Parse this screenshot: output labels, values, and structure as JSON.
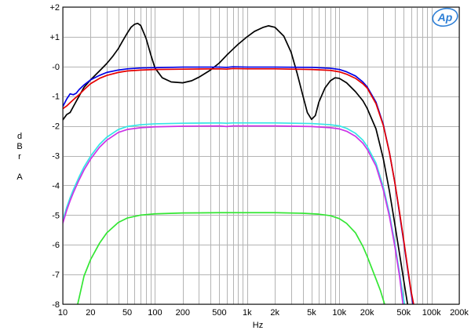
{
  "chart_data": {
    "type": "line",
    "xlabel": "Hz",
    "ylabel_lines": [
      "d",
      "B",
      "r",
      "",
      "A"
    ],
    "x_scale": "log",
    "xlim": [
      10,
      200000
    ],
    "ylim": [
      -8,
      2
    ],
    "grid": true,
    "x_major_ticks": [
      10,
      100,
      1000,
      10000,
      100000
    ],
    "x_tick_labels": [
      {
        "v": 10,
        "t": "10"
      },
      {
        "v": 20,
        "t": "20"
      },
      {
        "v": 50,
        "t": "50"
      },
      {
        "v": 100,
        "t": "100"
      },
      {
        "v": 200,
        "t": "200"
      },
      {
        "v": 500,
        "t": "500"
      },
      {
        "v": 1000,
        "t": "1k"
      },
      {
        "v": 2000,
        "t": "2k"
      },
      {
        "v": 5000,
        "t": "5k"
      },
      {
        "v": 10000,
        "t": "10k"
      },
      {
        "v": 20000,
        "t": "20k"
      },
      {
        "v": 50000,
        "t": "50k"
      },
      {
        "v": 100000,
        "t": "100k"
      },
      {
        "v": 200000,
        "t": "200k"
      }
    ],
    "y_tick_labels": [
      {
        "v": 2,
        "t": "+2"
      },
      {
        "v": 1,
        "t": "+1"
      },
      {
        "v": 0,
        "t": "-0"
      },
      {
        "v": -1,
        "t": "-1"
      },
      {
        "v": -2,
        "t": "-2"
      },
      {
        "v": -3,
        "t": "-3"
      },
      {
        "v": -4,
        "t": "-4"
      },
      {
        "v": -5,
        "t": "-5"
      },
      {
        "v": -6,
        "t": "-6"
      },
      {
        "v": -7,
        "t": "-7"
      },
      {
        "v": -8,
        "t": "-8"
      }
    ],
    "logo": "Ap",
    "series": [
      {
        "color": "#000000",
        "points": [
          [
            10,
            -1.8
          ],
          [
            11,
            -1.62
          ],
          [
            12,
            -1.55
          ],
          [
            13,
            -1.35
          ],
          [
            15,
            -1.0
          ],
          [
            17,
            -0.7
          ],
          [
            20,
            -0.45
          ],
          [
            25,
            -0.15
          ],
          [
            30,
            0.1
          ],
          [
            35,
            0.35
          ],
          [
            40,
            0.6
          ],
          [
            45,
            0.88
          ],
          [
            50,
            1.12
          ],
          [
            55,
            1.32
          ],
          [
            60,
            1.42
          ],
          [
            65,
            1.45
          ],
          [
            70,
            1.38
          ],
          [
            80,
            0.95
          ],
          [
            90,
            0.4
          ],
          [
            100,
            -0.05
          ],
          [
            120,
            -0.38
          ],
          [
            150,
            -0.52
          ],
          [
            200,
            -0.55
          ],
          [
            250,
            -0.48
          ],
          [
            300,
            -0.36
          ],
          [
            400,
            -0.12
          ],
          [
            500,
            0.12
          ],
          [
            600,
            0.38
          ],
          [
            700,
            0.58
          ],
          [
            800,
            0.75
          ],
          [
            1000,
            1.0
          ],
          [
            1200,
            1.18
          ],
          [
            1500,
            1.32
          ],
          [
            1700,
            1.37
          ],
          [
            2000,
            1.32
          ],
          [
            2500,
            1.02
          ],
          [
            3000,
            0.48
          ],
          [
            3500,
            -0.25
          ],
          [
            4000,
            -0.95
          ],
          [
            4500,
            -1.55
          ],
          [
            5000,
            -1.78
          ],
          [
            5500,
            -1.65
          ],
          [
            6000,
            -1.2
          ],
          [
            7000,
            -0.72
          ],
          [
            8000,
            -0.48
          ],
          [
            9000,
            -0.38
          ],
          [
            10000,
            -0.4
          ],
          [
            12000,
            -0.55
          ],
          [
            15000,
            -0.85
          ],
          [
            18000,
            -1.15
          ],
          [
            20000,
            -1.4
          ],
          [
            25000,
            -2.1
          ],
          [
            30000,
            -3.1
          ],
          [
            35000,
            -4.2
          ],
          [
            40000,
            -5.3
          ],
          [
            45000,
            -6.3
          ],
          [
            50000,
            -7.2
          ],
          [
            55000,
            -8.0
          ]
        ]
      },
      {
        "color": "#0000e6",
        "points": [
          [
            10,
            -1.35
          ],
          [
            11,
            -1.1
          ],
          [
            12,
            -0.92
          ],
          [
            13,
            -0.95
          ],
          [
            14,
            -0.9
          ],
          [
            15,
            -0.78
          ],
          [
            17,
            -0.62
          ],
          [
            20,
            -0.45
          ],
          [
            25,
            -0.3
          ],
          [
            30,
            -0.2
          ],
          [
            40,
            -0.12
          ],
          [
            50,
            -0.08
          ],
          [
            70,
            -0.05
          ],
          [
            100,
            -0.04
          ],
          [
            200,
            -0.02
          ],
          [
            300,
            -0.02
          ],
          [
            500,
            -0.02
          ],
          [
            600,
            -0.03
          ],
          [
            700,
            -0.01
          ],
          [
            1000,
            -0.02
          ],
          [
            2000,
            -0.02
          ],
          [
            5000,
            -0.03
          ],
          [
            8000,
            -0.06
          ],
          [
            10000,
            -0.1
          ],
          [
            12000,
            -0.18
          ],
          [
            15000,
            -0.32
          ],
          [
            18000,
            -0.52
          ],
          [
            20000,
            -0.68
          ],
          [
            25000,
            -1.2
          ],
          [
            30000,
            -1.95
          ],
          [
            35000,
            -2.9
          ],
          [
            40000,
            -3.9
          ],
          [
            45000,
            -4.95
          ],
          [
            50000,
            -5.9
          ],
          [
            55000,
            -6.8
          ],
          [
            60000,
            -7.6
          ],
          [
            63000,
            -8.0
          ]
        ]
      },
      {
        "color": "#e60000",
        "points": [
          [
            10,
            -1.42
          ],
          [
            11,
            -1.33
          ],
          [
            12,
            -1.22
          ],
          [
            13,
            -1.12
          ],
          [
            15,
            -0.95
          ],
          [
            17,
            -0.78
          ],
          [
            20,
            -0.58
          ],
          [
            25,
            -0.4
          ],
          [
            30,
            -0.3
          ],
          [
            40,
            -0.2
          ],
          [
            50,
            -0.15
          ],
          [
            70,
            -0.12
          ],
          [
            100,
            -0.1
          ],
          [
            200,
            -0.09
          ],
          [
            500,
            -0.08
          ],
          [
            600,
            -0.09
          ],
          [
            700,
            -0.07
          ],
          [
            1000,
            -0.08
          ],
          [
            2000,
            -0.08
          ],
          [
            5000,
            -0.1
          ],
          [
            8000,
            -0.13
          ],
          [
            10000,
            -0.18
          ],
          [
            12000,
            -0.26
          ],
          [
            15000,
            -0.4
          ],
          [
            18000,
            -0.58
          ],
          [
            20000,
            -0.72
          ],
          [
            25000,
            -1.25
          ],
          [
            30000,
            -1.98
          ],
          [
            35000,
            -2.9
          ],
          [
            40000,
            -3.9
          ],
          [
            45000,
            -4.9
          ],
          [
            50000,
            -5.85
          ],
          [
            55000,
            -6.75
          ],
          [
            60000,
            -7.55
          ],
          [
            64000,
            -8.0
          ]
        ]
      },
      {
        "color": "#33e6e6",
        "points": [
          [
            10,
            -5.18
          ],
          [
            11,
            -4.75
          ],
          [
            12,
            -4.42
          ],
          [
            13,
            -4.15
          ],
          [
            15,
            -3.72
          ],
          [
            17,
            -3.38
          ],
          [
            20,
            -3.02
          ],
          [
            25,
            -2.62
          ],
          [
            30,
            -2.38
          ],
          [
            40,
            -2.12
          ],
          [
            50,
            -2.02
          ],
          [
            70,
            -1.96
          ],
          [
            100,
            -1.93
          ],
          [
            200,
            -1.91
          ],
          [
            500,
            -1.9
          ],
          [
            600,
            -1.91
          ],
          [
            700,
            -1.9
          ],
          [
            1000,
            -1.9
          ],
          [
            2000,
            -1.9
          ],
          [
            5000,
            -1.92
          ],
          [
            8000,
            -1.96
          ],
          [
            10000,
            -2.0
          ],
          [
            12000,
            -2.08
          ],
          [
            15000,
            -2.25
          ],
          [
            18000,
            -2.48
          ],
          [
            20000,
            -2.68
          ],
          [
            25000,
            -3.25
          ],
          [
            30000,
            -4.05
          ],
          [
            35000,
            -4.95
          ],
          [
            40000,
            -5.95
          ],
          [
            45000,
            -6.95
          ],
          [
            50000,
            -7.85
          ],
          [
            51000,
            -8.0
          ]
        ]
      },
      {
        "color": "#cc33e6",
        "points": [
          [
            10,
            -5.28
          ],
          [
            11,
            -4.85
          ],
          [
            12,
            -4.52
          ],
          [
            13,
            -4.25
          ],
          [
            15,
            -3.82
          ],
          [
            17,
            -3.48
          ],
          [
            20,
            -3.12
          ],
          [
            25,
            -2.72
          ],
          [
            30,
            -2.48
          ],
          [
            40,
            -2.22
          ],
          [
            50,
            -2.12
          ],
          [
            70,
            -2.06
          ],
          [
            100,
            -2.03
          ],
          [
            200,
            -2.01
          ],
          [
            500,
            -2.0
          ],
          [
            600,
            -2.02
          ],
          [
            700,
            -2.0
          ],
          [
            1000,
            -2.0
          ],
          [
            2000,
            -2.0
          ],
          [
            5000,
            -2.02
          ],
          [
            8000,
            -2.06
          ],
          [
            10000,
            -2.1
          ],
          [
            12000,
            -2.18
          ],
          [
            15000,
            -2.35
          ],
          [
            18000,
            -2.58
          ],
          [
            20000,
            -2.78
          ],
          [
            25000,
            -3.35
          ],
          [
            30000,
            -4.15
          ],
          [
            35000,
            -5.05
          ],
          [
            40000,
            -6.05
          ],
          [
            45000,
            -7.05
          ],
          [
            49000,
            -8.0
          ]
        ]
      },
      {
        "color": "#33e633",
        "points": [
          [
            14.5,
            -8.0
          ],
          [
            15,
            -7.8
          ],
          [
            17,
            -7.05
          ],
          [
            20,
            -6.5
          ],
          [
            25,
            -5.95
          ],
          [
            30,
            -5.6
          ],
          [
            40,
            -5.25
          ],
          [
            50,
            -5.1
          ],
          [
            70,
            -5.0
          ],
          [
            100,
            -4.96
          ],
          [
            200,
            -4.93
          ],
          [
            500,
            -4.92
          ],
          [
            1000,
            -4.92
          ],
          [
            2000,
            -4.92
          ],
          [
            4000,
            -4.94
          ],
          [
            6000,
            -4.97
          ],
          [
            8000,
            -5.02
          ],
          [
            10000,
            -5.12
          ],
          [
            12000,
            -5.28
          ],
          [
            15000,
            -5.6
          ],
          [
            18000,
            -6.05
          ],
          [
            20000,
            -6.38
          ],
          [
            25000,
            -7.15
          ],
          [
            28000,
            -7.55
          ],
          [
            31000,
            -8.0
          ]
        ]
      }
    ]
  }
}
